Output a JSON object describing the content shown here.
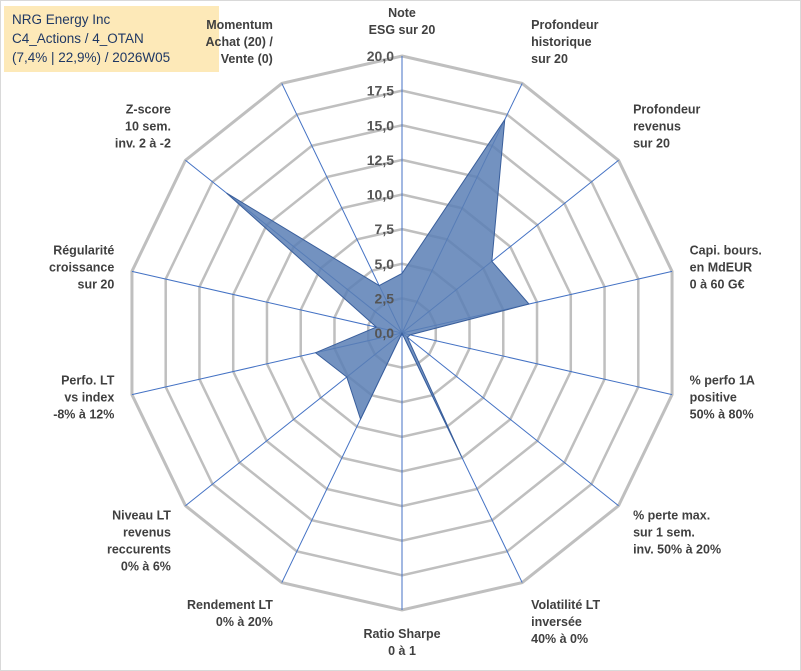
{
  "header": {
    "line1": "NRG Energy Inc",
    "line2": "C4_Actions / 4_OTAN",
    "line3": "(7,4% | 22,9%) / 2026W05"
  },
  "chart_data": {
    "type": "radar",
    "title": "NRG Energy Inc",
    "rmin": 0,
    "rmax": 20,
    "tick_step": 2.5,
    "ticks": [
      "0,0",
      "2,5",
      "5,0",
      "7,5",
      "10,0",
      "12,5",
      "15,0",
      "17,5",
      "20,0"
    ],
    "categories": [
      [
        "Note",
        "ESG sur 20"
      ],
      [
        "Profondeur",
        "historique",
        "sur 20"
      ],
      [
        "Profondeur",
        "revenus",
        "sur 20"
      ],
      [
        "Capi. bours.",
        "en MdEUR",
        "0 à 60 G€"
      ],
      [
        "% perfo 1A",
        "positive",
        "50% à 80%"
      ],
      [
        "% perte max.",
        "sur 1 sem.",
        "inv. 50% à 20%"
      ],
      [
        "Volatilité LT",
        "inversée",
        "40% à 0%"
      ],
      [
        "Ratio Sharpe",
        "0 à 1"
      ],
      [
        "Rendement LT",
        "0% à 20%"
      ],
      [
        "Niveau LT",
        "revenus",
        "reccurents",
        "0% à 6%"
      ],
      [
        "Perfo. LT",
        "vs index",
        "-8% à 12%"
      ],
      [
        "Régularité",
        "croissance",
        "sur 20"
      ],
      [
        "Z-score",
        "10 sem.",
        "inv. 2 à -2"
      ],
      [
        "Momentum",
        "Achat (20) /",
        "Vente (0)"
      ]
    ],
    "series": [
      {
        "name": "NRG Energy Inc",
        "values": [
          4.3,
          17.1,
          8.3,
          9.4,
          0.6,
          0.5,
          9.9,
          0.0,
          6.9,
          5.1,
          6.4,
          1.9,
          16.2,
          3.8
        ]
      }
    ],
    "colors": {
      "fill": "#5b7fb5",
      "stroke": "#3a5f9c",
      "grid": "#bfbfbf",
      "axis": "#4472c4",
      "header_bg": "#fde9b8",
      "header_text": "#1f3864"
    }
  }
}
